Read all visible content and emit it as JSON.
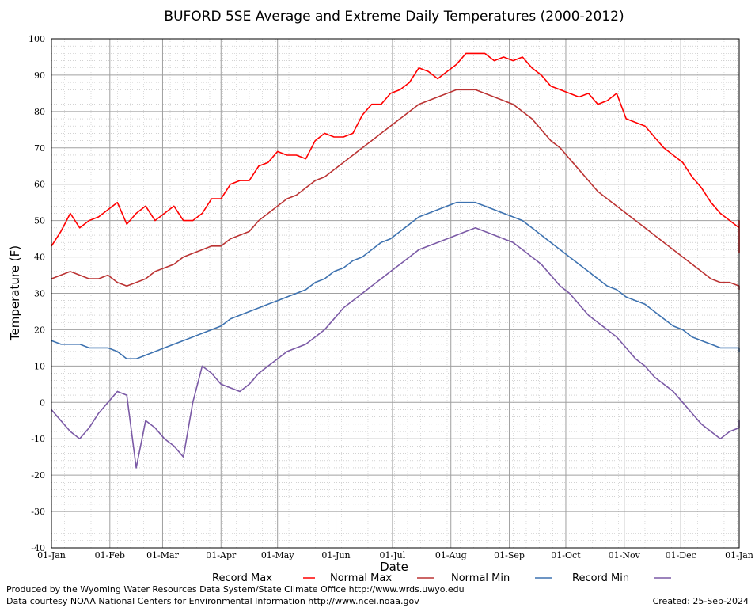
{
  "chart_data": {
    "type": "line",
    "title": "BUFORD 5SE Average and Extreme Daily Temperatures (2000-2012)",
    "xlabel": "Date",
    "ylabel": "Temperature (F)",
    "ylim": [
      -40,
      100
    ],
    "yticks": [
      100,
      90,
      80,
      70,
      60,
      50,
      40,
      30,
      20,
      10,
      0,
      -10,
      -20,
      -30,
      -40
    ],
    "ytick_labels": [
      "100",
      "90",
      "80",
      "70",
      "60",
      "50",
      "40",
      "30",
      "20",
      "10",
      "0",
      "-10",
      "-20",
      "-30",
      "-40"
    ],
    "xlim": [
      0,
      365
    ],
    "xticks": [
      0,
      31,
      59,
      90,
      120,
      151,
      181,
      212,
      243,
      273,
      304,
      334,
      365
    ],
    "xtick_labels": [
      "01-Jan",
      "01-Feb",
      "01-Mar",
      "01-Apr",
      "01-May",
      "01-Jun",
      "01-Jul",
      "01-Aug",
      "01-Sep",
      "01-Oct",
      "01-Nov",
      "01-Dec",
      "01-Jan"
    ],
    "grid": true,
    "legend": "bottom",
    "x_step_days": 5,
    "series": [
      {
        "name": "Record Max",
        "color": "#ff0000",
        "values": [
          43,
          47,
          52,
          48,
          50,
          51,
          53,
          55,
          49,
          52,
          54,
          50,
          52,
          54,
          50,
          50,
          52,
          56,
          56,
          60,
          61,
          61,
          65,
          66,
          69,
          68,
          68,
          67,
          72,
          74,
          73,
          73,
          74,
          79,
          82,
          82,
          85,
          86,
          88,
          92,
          91,
          89,
          91,
          93,
          96,
          96,
          96,
          94,
          95,
          94,
          95,
          92,
          90,
          87,
          86,
          85,
          84,
          85,
          82,
          83,
          85,
          78,
          77,
          76,
          73,
          70,
          68,
          66,
          62,
          59,
          55,
          52,
          50,
          48,
          49,
          50,
          49,
          41
        ]
      },
      {
        "name": "Normal Max",
        "color": "#bb3333",
        "values": [
          34,
          35,
          36,
          35,
          34,
          34,
          35,
          33,
          32,
          33,
          34,
          36,
          37,
          38,
          40,
          41,
          42,
          43,
          43,
          45,
          46,
          47,
          50,
          52,
          54,
          56,
          57,
          59,
          61,
          62,
          64,
          66,
          68,
          70,
          72,
          74,
          76,
          78,
          80,
          82,
          83,
          84,
          85,
          86,
          86,
          86,
          85,
          84,
          83,
          82,
          80,
          78,
          75,
          72,
          70,
          67,
          64,
          61,
          58,
          56,
          54,
          52,
          50,
          48,
          46,
          44,
          42,
          40,
          38,
          36,
          34,
          33,
          33,
          32,
          32,
          32,
          31,
          31
        ]
      },
      {
        "name": "Normal Min",
        "color": "#3d72b0",
        "values": [
          17,
          16,
          16,
          16,
          15,
          15,
          15,
          14,
          12,
          12,
          13,
          14,
          15,
          16,
          17,
          18,
          19,
          20,
          21,
          23,
          24,
          25,
          26,
          27,
          28,
          29,
          30,
          31,
          33,
          34,
          36,
          37,
          39,
          40,
          42,
          44,
          45,
          47,
          49,
          51,
          52,
          53,
          54,
          55,
          55,
          55,
          54,
          53,
          52,
          51,
          50,
          48,
          46,
          44,
          42,
          40,
          38,
          36,
          34,
          32,
          31,
          29,
          28,
          27,
          25,
          23,
          21,
          20,
          18,
          17,
          16,
          15,
          15,
          15,
          15,
          15,
          14,
          14
        ]
      },
      {
        "name": "Record Min",
        "color": "#7b5aa6",
        "values": [
          -2,
          -5,
          -8,
          -10,
          -7,
          -3,
          0,
          3,
          2,
          -18,
          -5,
          -7,
          -10,
          -12,
          -15,
          0,
          10,
          8,
          5,
          4,
          3,
          5,
          8,
          10,
          12,
          14,
          15,
          16,
          18,
          20,
          23,
          26,
          28,
          30,
          32,
          34,
          36,
          38,
          40,
          42,
          43,
          44,
          45,
          46,
          47,
          48,
          47,
          46,
          45,
          44,
          42,
          40,
          38,
          35,
          32,
          30,
          27,
          24,
          22,
          20,
          18,
          15,
          12,
          10,
          7,
          5,
          3,
          0,
          -3,
          -6,
          -8,
          -10,
          -8,
          -7,
          -6,
          -5,
          -6,
          -7
        ]
      }
    ]
  },
  "legend_labels": [
    "Record Max",
    "Normal Max",
    "Normal Min",
    "Record Min"
  ],
  "footer": {
    "produced": "Produced by the Wyoming Water Resources Data System/State Climate Office http://www.wrds.uwyo.edu",
    "courtesy": "Data courtesy NOAA National Centers for Environmental Information http://www.ncei.noaa.gov",
    "created": "Created:  25-Sep-2024"
  }
}
